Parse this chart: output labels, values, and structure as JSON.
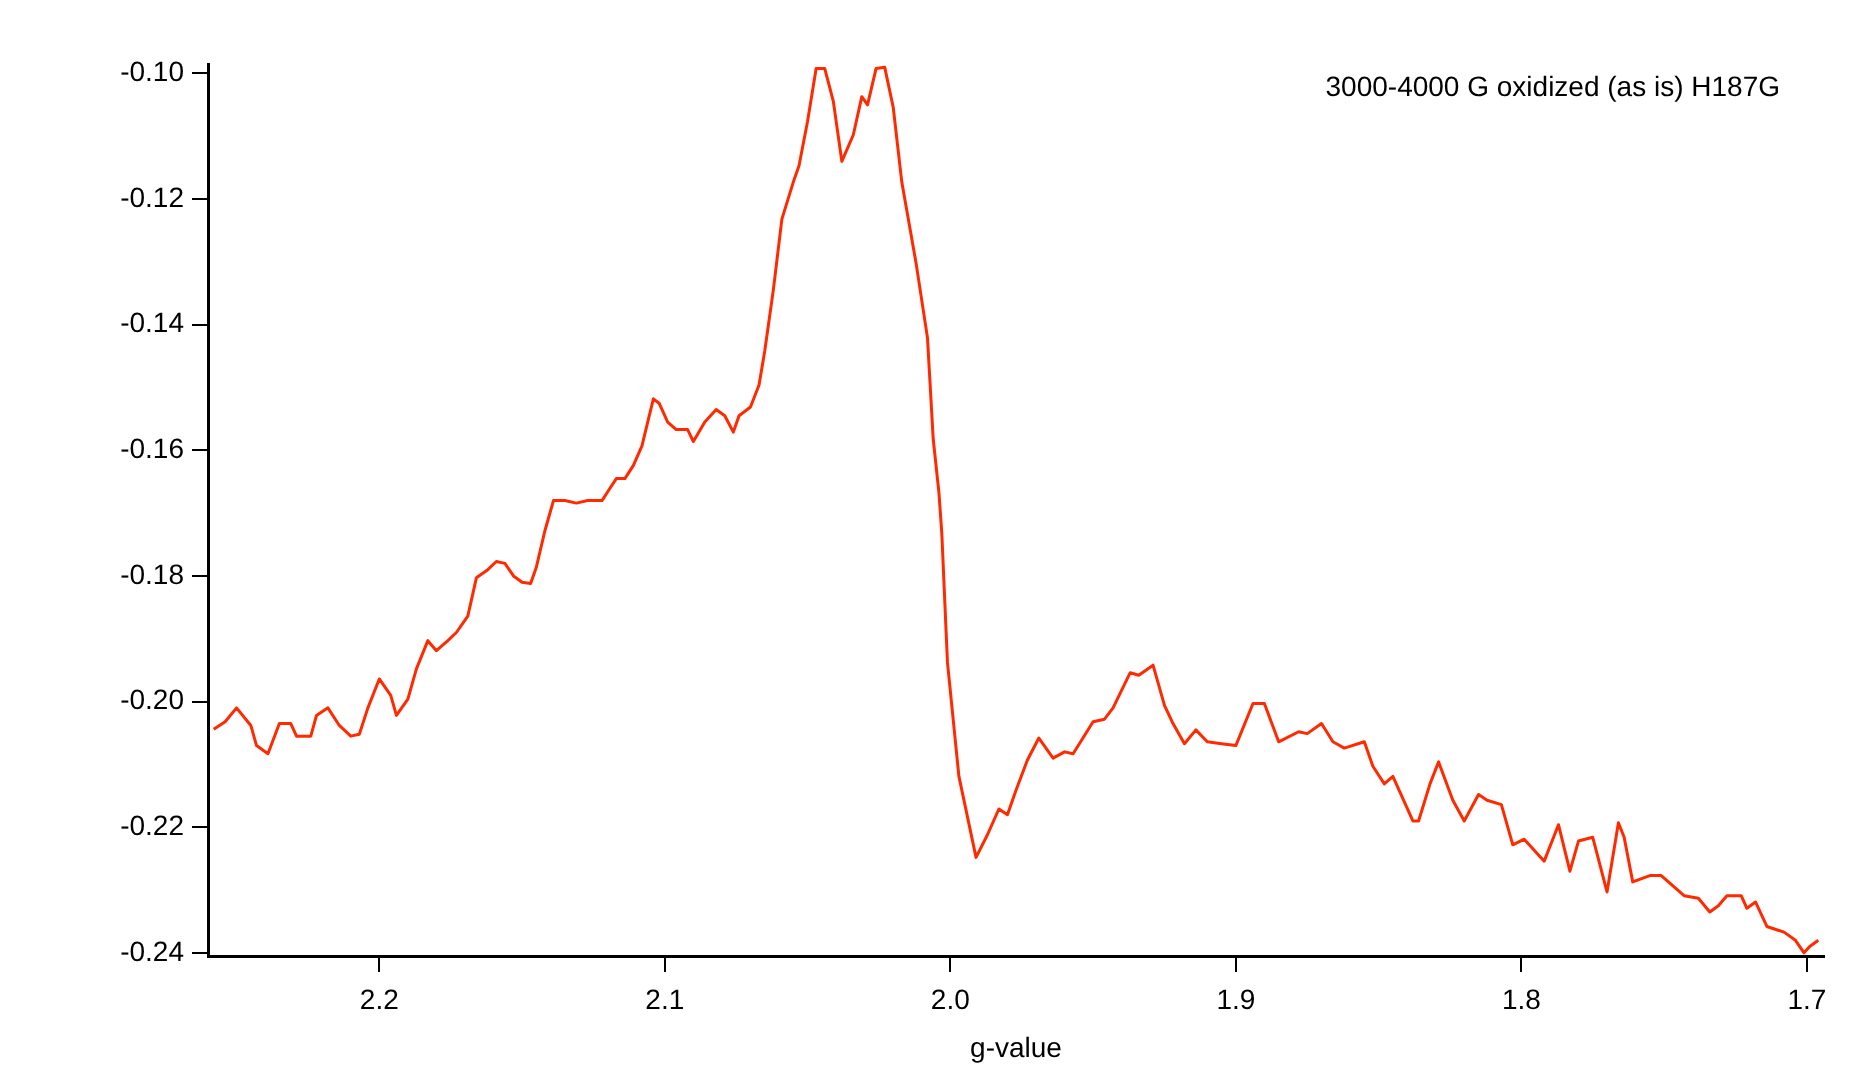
{
  "chart_data": {
    "type": "line",
    "xlabel": "g-value",
    "annotations": [
      "3000-4000 G oxidized (as is) H187G"
    ],
    "x": [
      2.258,
      2.254,
      2.25,
      2.245,
      2.243,
      2.239,
      2.235,
      2.231,
      2.229,
      2.224,
      2.222,
      2.218,
      2.214,
      2.21,
      2.207,
      2.204,
      2.2,
      2.196,
      2.194,
      2.19,
      2.187,
      2.183,
      2.18,
      2.176,
      2.173,
      2.169,
      2.166,
      2.162,
      2.159,
      2.156,
      2.153,
      2.15,
      2.147,
      2.145,
      2.142,
      2.139,
      2.135,
      2.131,
      2.127,
      2.122,
      2.12,
      2.117,
      2.114,
      2.111,
      2.108,
      2.106,
      2.104,
      2.102,
      2.099,
      2.096,
      2.092,
      2.09,
      2.086,
      2.082,
      2.079,
      2.076,
      2.074,
      2.07,
      2.067,
      2.065,
      2.062,
      2.059,
      2.055,
      2.053,
      2.05,
      2.047,
      2.044,
      2.041,
      2.038,
      2.034,
      2.031,
      2.029,
      2.026,
      2.023,
      2.02,
      2.017,
      2.012,
      2.008,
      2.006,
      2.004,
      2.003,
      2.001,
      1.997,
      1.991,
      1.987,
      1.983,
      1.98,
      1.977,
      1.973,
      1.969,
      1.964,
      1.96,
      1.957,
      1.95,
      1.946,
      1.943,
      1.937,
      1.934,
      1.929,
      1.925,
      1.922,
      1.918,
      1.914,
      1.91,
      1.905,
      1.9,
      1.894,
      1.89,
      1.885,
      1.878,
      1.875,
      1.87,
      1.866,
      1.862,
      1.855,
      1.852,
      1.848,
      1.845,
      1.838,
      1.836,
      1.832,
      1.829,
      1.824,
      1.82,
      1.815,
      1.812,
      1.807,
      1.803,
      1.799,
      1.792,
      1.787,
      1.783,
      1.78,
      1.775,
      1.77,
      1.766,
      1.764,
      1.761,
      1.755,
      1.751,
      1.743,
      1.738,
      1.734,
      1.731,
      1.728,
      1.723,
      1.721,
      1.718,
      1.714,
      1.708,
      1.704,
      1.701,
      1.699,
      1.696
    ],
    "series": [
      {
        "color": "#ff2a00",
        "values": [
          -0.2044,
          -0.2032,
          -0.201,
          -0.2038,
          -0.207,
          -0.2083,
          -0.2035,
          -0.2035,
          -0.2055,
          -0.2055,
          -0.2022,
          -0.201,
          -0.2038,
          -0.2055,
          -0.2052,
          -0.201,
          -0.1964,
          -0.199,
          -0.2022,
          -0.1996,
          -0.1948,
          -0.1903,
          -0.1919,
          -0.1903,
          -0.189,
          -0.1864,
          -0.1803,
          -0.179,
          -0.1777,
          -0.178,
          -0.18,
          -0.181,
          -0.1812,
          -0.1786,
          -0.1728,
          -0.168,
          -0.168,
          -0.1684,
          -0.168,
          -0.168,
          -0.1666,
          -0.1645,
          -0.1645,
          -0.1624,
          -0.1593,
          -0.1555,
          -0.1518,
          -0.1525,
          -0.1555,
          -0.1567,
          -0.1567,
          -0.1586,
          -0.1555,
          -0.1535,
          -0.1545,
          -0.1571,
          -0.1545,
          -0.1531,
          -0.1496,
          -0.1442,
          -0.1345,
          -0.1232,
          -0.1173,
          -0.1147,
          -0.1076,
          -0.0992,
          -0.0992,
          -0.1044,
          -0.114,
          -0.1098,
          -0.1037,
          -0.105,
          -0.0992,
          -0.099,
          -0.1054,
          -0.1173,
          -0.1302,
          -0.1421,
          -0.1582,
          -0.1667,
          -0.1731,
          -0.1938,
          -0.2119,
          -0.2248,
          -0.2212,
          -0.2171,
          -0.218,
          -0.2141,
          -0.2093,
          -0.2058,
          -0.209,
          -0.208,
          -0.2083,
          -0.2032,
          -0.2028,
          -0.201,
          -0.1954,
          -0.1958,
          -0.1942,
          -0.2006,
          -0.2035,
          -0.2067,
          -0.2045,
          -0.2064,
          -0.2067,
          -0.207,
          -0.2003,
          -0.2003,
          -0.2064,
          -0.2048,
          -0.2051,
          -0.2035,
          -0.2064,
          -0.2074,
          -0.2064,
          -0.2103,
          -0.2131,
          -0.2119,
          -0.219,
          -0.219,
          -0.2131,
          -0.2096,
          -0.2157,
          -0.219,
          -0.2148,
          -0.2157,
          -0.2164,
          -0.2228,
          -0.2219,
          -0.2254,
          -0.2196,
          -0.227,
          -0.2222,
          -0.2216,
          -0.2303,
          -0.2193,
          -0.2216,
          -0.2287,
          -0.2277,
          -0.2277,
          -0.2309,
          -0.2313,
          -0.2335,
          -0.2325,
          -0.2309,
          -0.2309,
          -0.2329,
          -0.2319,
          -0.2358,
          -0.2367,
          -0.238,
          -0.24,
          -0.239,
          -0.238
        ]
      }
    ],
    "xlim": [
      2.26,
      1.694
    ],
    "xticks": [
      2.2,
      2.1,
      {
        "value": 2,
        "label": "2.0"
      },
      1.9,
      1.8,
      1.7
    ],
    "ylim": [
      -0.2405,
      -0.0985
    ],
    "yticks": [
      {
        "value": -0.1,
        "label": "-0.10"
      },
      -0.12,
      -0.14,
      -0.16,
      -0.18,
      {
        "value": -0.2,
        "label": "-0.20"
      },
      -0.22,
      -0.24
    ]
  }
}
